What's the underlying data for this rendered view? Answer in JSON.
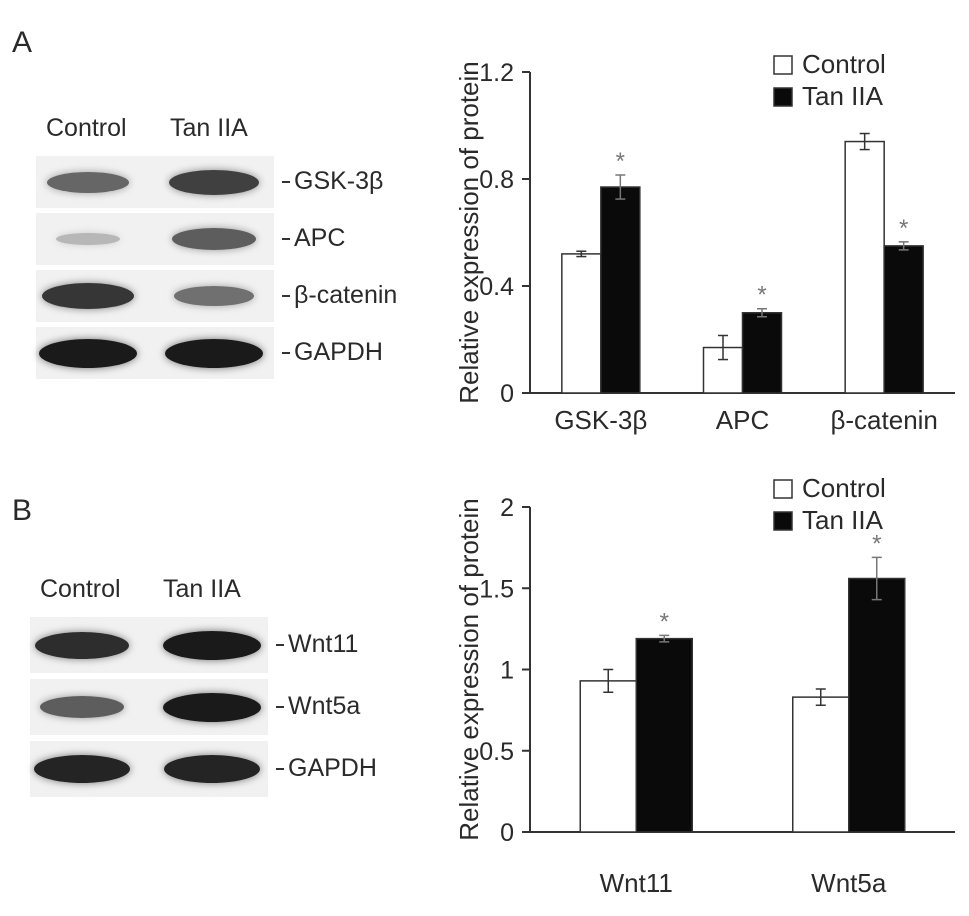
{
  "panels": {
    "a": {
      "letter": "A",
      "blot": {
        "headers": [
          "Control",
          "Tan IIA"
        ],
        "rows": [
          {
            "label": "GSK-3β",
            "control": 0.55,
            "tan": 0.75
          },
          {
            "label": "APC",
            "control": 0.12,
            "tan": 0.6
          },
          {
            "label": "β-catenin",
            "control": 0.8,
            "tan": 0.5
          },
          {
            "label": "GAPDH",
            "control": 0.95,
            "tan": 0.95
          }
        ]
      }
    },
    "b": {
      "letter": "B",
      "blot": {
        "headers": [
          "Control",
          "Tan IIA"
        ],
        "rows": [
          {
            "label": "Wnt11",
            "control": 0.85,
            "tan": 0.95
          },
          {
            "label": "Wnt5a",
            "control": 0.6,
            "tan": 0.95
          },
          {
            "label": "GAPDH",
            "control": 0.9,
            "tan": 0.9
          }
        ]
      }
    }
  },
  "colors": {
    "control_fill": "#ffffff",
    "tan_fill": "#0a0a0a",
    "axis": "#333333",
    "text": "#2a2a2a"
  },
  "chart_data": [
    {
      "type": "bar",
      "ylabel": "Relative expression of protein",
      "categories": [
        "GSK-3β",
        "APC",
        "β-catenin"
      ],
      "series": [
        {
          "name": "Control",
          "values": [
            0.52,
            0.17,
            0.94
          ],
          "errors": [
            0.01,
            0.045,
            0.03
          ]
        },
        {
          "name": "Tan IIA",
          "values": [
            0.77,
            0.3,
            0.55
          ],
          "errors": [
            0.045,
            0.015,
            0.015
          ]
        }
      ],
      "significance": [
        "*",
        "*",
        "*"
      ],
      "ylim": [
        0,
        1.2
      ],
      "yticks": [
        "0",
        "0.4",
        "0.8",
        "1.2"
      ],
      "ytick_values": [
        0,
        0.4,
        0.8,
        1.2
      ],
      "legend_position": "top-right"
    },
    {
      "type": "bar",
      "ylabel": "Relative expression of protein",
      "categories": [
        "Wnt11",
        "Wnt5a"
      ],
      "series": [
        {
          "name": "Control",
          "values": [
            0.93,
            0.83
          ],
          "errors": [
            0.07,
            0.05
          ]
        },
        {
          "name": "Tan IIA",
          "values": [
            1.19,
            1.56
          ],
          "errors": [
            0.02,
            0.13
          ]
        }
      ],
      "significance": [
        "*",
        "*"
      ],
      "ylim": [
        0,
        2
      ],
      "yticks": [
        "0",
        "0.5",
        "1",
        "1.5",
        "2"
      ],
      "ytick_values": [
        0,
        0.5,
        1,
        1.5,
        2
      ],
      "legend_position": "top-right"
    }
  ]
}
